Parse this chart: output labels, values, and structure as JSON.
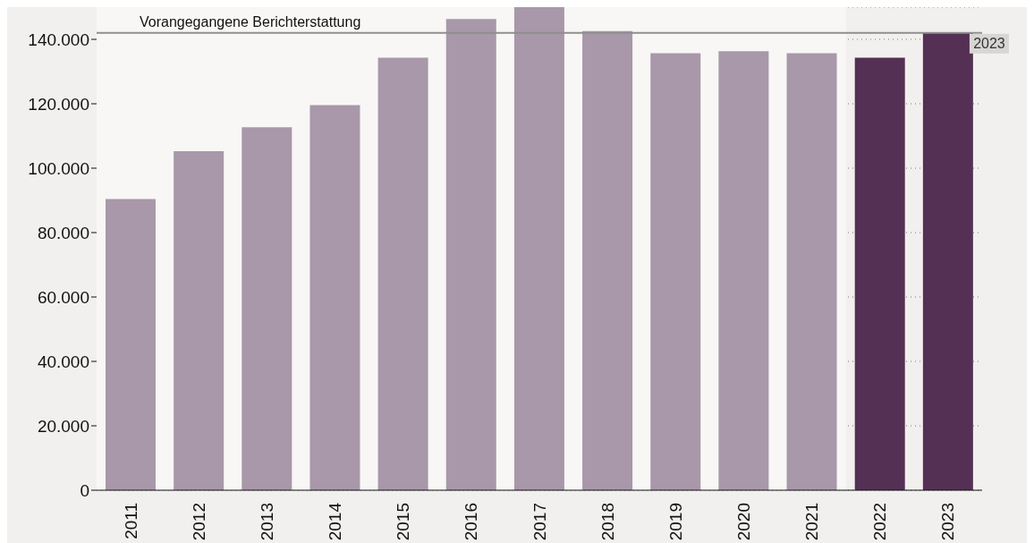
{
  "chart_data": {
    "type": "bar",
    "categories": [
      "2011",
      "2012",
      "2013",
      "2014",
      "2015",
      "2016",
      "2017",
      "2018",
      "2019",
      "2020",
      "2021",
      "2022",
      "2023"
    ],
    "values": [
      90400,
      105300,
      112700,
      119600,
      134300,
      146300,
      150000,
      142600,
      135700,
      136300,
      135700,
      134300,
      142000
    ],
    "colors": [
      "#a898aa",
      "#a898aa",
      "#a898aa",
      "#a898aa",
      "#a898aa",
      "#a898aa",
      "#a898aa",
      "#a898aa",
      "#a898aa",
      "#a898aa",
      "#a898aa",
      "#543055",
      "#543055"
    ],
    "ylim": [
      0,
      150000
    ],
    "yticks": [
      {
        "value": 0,
        "label": "0"
      },
      {
        "value": 20000,
        "label": "20.000"
      },
      {
        "value": 40000,
        "label": "40.000"
      },
      {
        "value": 60000,
        "label": "60.000"
      },
      {
        "value": 80000,
        "label": "80.000"
      },
      {
        "value": 100000,
        "label": "100.000"
      },
      {
        "value": 120000,
        "label": "120.000"
      },
      {
        "value": 140000,
        "label": "140.000"
      }
    ],
    "grid": "y",
    "ref_lines": [
      {
        "axis": "y",
        "value": 142000,
        "label": "Vorangegangene Berichterstattung",
        "color": "#8e8e8e"
      }
    ],
    "bands": [
      {
        "axis": "x",
        "from": "2011",
        "to": "2021",
        "color": "#f8f7f5"
      }
    ],
    "annotations": [
      {
        "text": "2023",
        "x": "2023",
        "y": 142000
      }
    ],
    "legend": false
  }
}
